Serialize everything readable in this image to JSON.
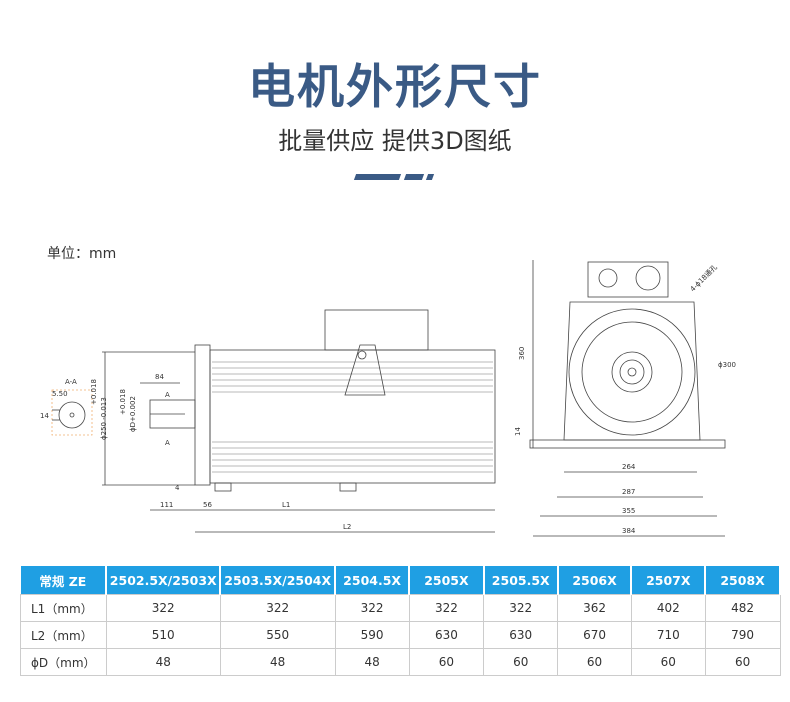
{
  "header": {
    "title": "电机外形尺寸",
    "subtitle": "批量供应 提供3D图纸"
  },
  "unit_label": "单位：mm",
  "colors": {
    "title": "#3a5a85",
    "table_header": "#1f9fe3"
  },
  "drawing": {
    "section_label": "A-A",
    "key_width": "5.50",
    "key_height": "14",
    "flange_tol": "+0.018",
    "flange_dia": "ϕ250 -0.013",
    "shaft_tol_upper": "+0.018",
    "shaft_dia": "ϕD+0.002",
    "shaft_length": "84",
    "section_mark": "A",
    "flange_thickness": "4",
    "shaft_ext": "111",
    "flange_offset": "56",
    "l1": "L1",
    "l2": "L2",
    "height": "360",
    "base_thickness": "14",
    "holes": "4-ϕ18通孔",
    "pcd": "ϕ300",
    "w1": "264",
    "w2": "287",
    "w3": "355",
    "w4": "384"
  },
  "table": {
    "headers": [
      "常规 ZE",
      "2502.5X/2503X",
      "2503.5X/2504X",
      "2504.5X",
      "2505X",
      "2505.5X",
      "2506X",
      "2507X",
      "2508X"
    ],
    "rows": [
      {
        "label": "L1（mm）",
        "values": [
          "322",
          "322",
          "322",
          "322",
          "322",
          "362",
          "402",
          "482"
        ]
      },
      {
        "label": "L2（mm）",
        "values": [
          "510",
          "550",
          "590",
          "630",
          "630",
          "670",
          "710",
          "790"
        ]
      },
      {
        "label": "ϕD（mm）",
        "values": [
          "48",
          "48",
          "48",
          "60",
          "60",
          "60",
          "60",
          "60"
        ]
      }
    ]
  }
}
